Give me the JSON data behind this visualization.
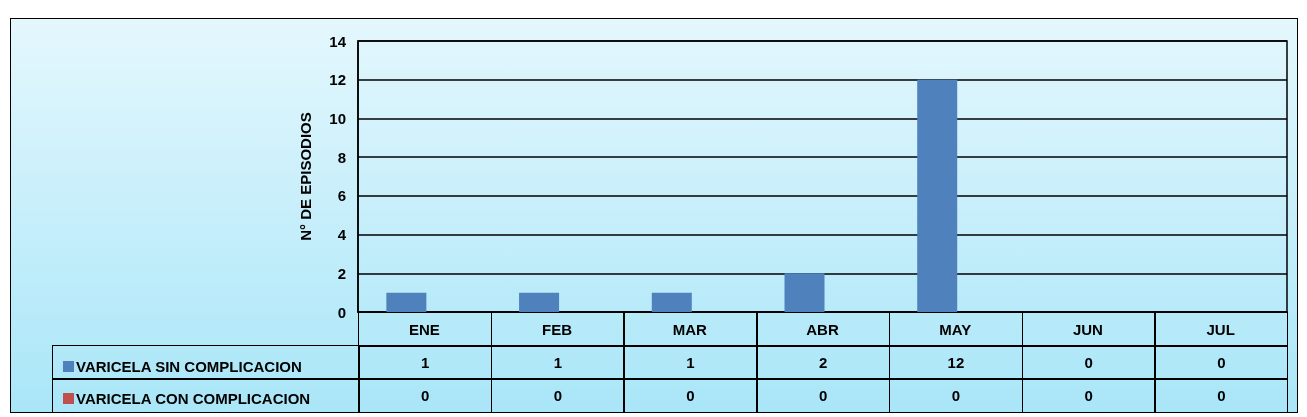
{
  "chart_data": {
    "type": "bar",
    "ylabel": "N° DE EPISODIOS",
    "categories": [
      "ENE",
      "FEB",
      "MAR",
      "ABR",
      "MAY",
      "JUN",
      "JUL"
    ],
    "series": [
      {
        "name": "VARICELA SIN COMPLICACION",
        "color": "#4f81bd",
        "values": [
          1,
          1,
          1,
          2,
          12,
          0,
          0
        ]
      },
      {
        "name": "VARICELA CON COMPLICACION",
        "color": "#c0504d",
        "values": [
          0,
          0,
          0,
          0,
          0,
          0,
          0
        ]
      }
    ],
    "ylim": [
      0,
      14
    ],
    "yticks": [
      0,
      2,
      4,
      6,
      8,
      10,
      12,
      14
    ],
    "grid": "y",
    "legend": "bottom left",
    "data_labels": true
  }
}
